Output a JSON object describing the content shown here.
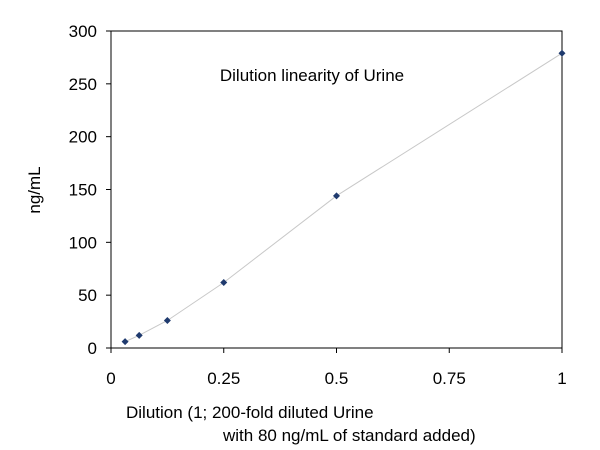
{
  "chart_data": {
    "type": "scatter",
    "title": "Dilution linearity of Urine",
    "xlabel_line1": "Dilution (1; 200-fold diluted Urine",
    "xlabel_line2": "with 80 ng/mL of standard added)",
    "ylabel": "ng/mL",
    "xlim": [
      0,
      1
    ],
    "ylim": [
      0,
      300
    ],
    "x_ticks": [
      0,
      0.25,
      0.5,
      0.75,
      1
    ],
    "x_tick_labels": [
      "0",
      "0.25",
      "0.5",
      "0.75",
      "1"
    ],
    "y_ticks": [
      0,
      50,
      100,
      150,
      200,
      250,
      300
    ],
    "y_tick_labels": [
      "0",
      "50",
      "100",
      "150",
      "200",
      "250",
      "300"
    ],
    "grid": false,
    "series": [
      {
        "x": [
          0.03125,
          0.0625,
          0.125,
          0.25,
          0.5,
          1
        ],
        "y": [
          6,
          12,
          26,
          62,
          144,
          279
        ]
      }
    ],
    "colors": {
      "marker": "#1f3a6e",
      "line": "#c8c8c8",
      "axis": "#000000"
    }
  }
}
